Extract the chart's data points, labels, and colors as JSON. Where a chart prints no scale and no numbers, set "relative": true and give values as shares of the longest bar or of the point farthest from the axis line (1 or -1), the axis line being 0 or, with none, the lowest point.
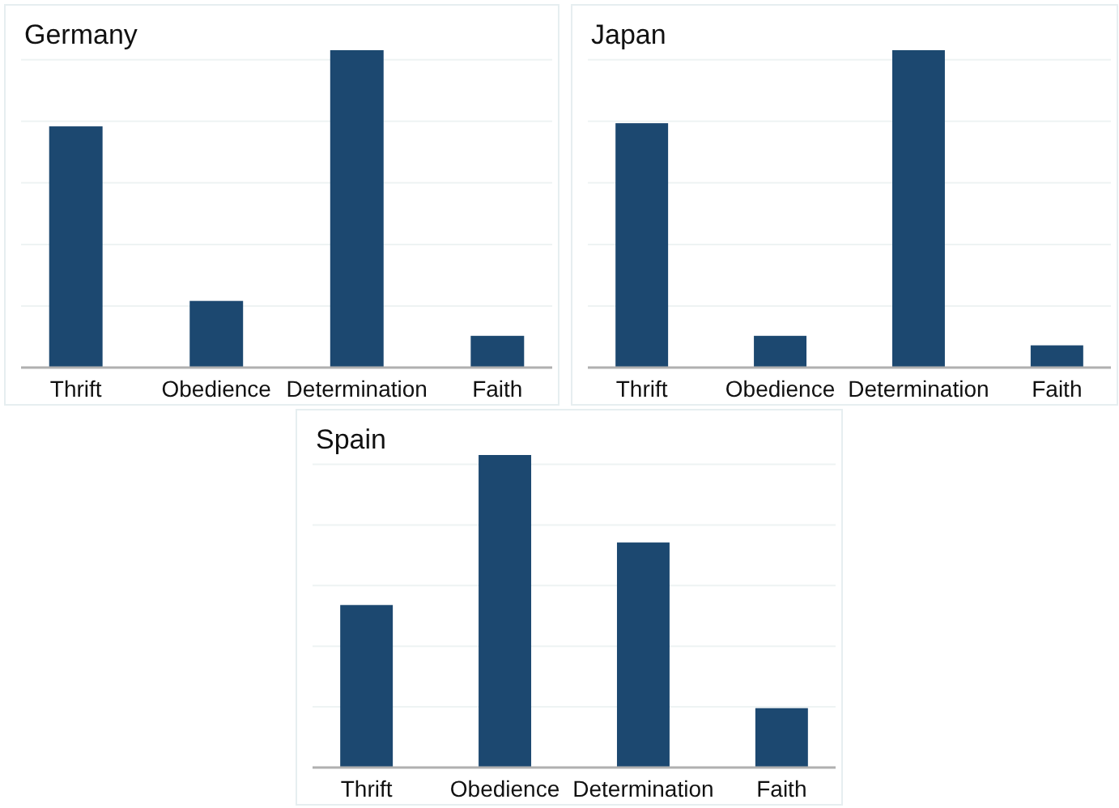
{
  "chart_data": [
    {
      "type": "bar",
      "title": "Germany",
      "categories": [
        "Thrift",
        "Obedience",
        "Determination",
        "Faith"
      ],
      "values": [
        0.76,
        0.21,
        1,
        0.1
      ],
      "color": "#1c4870",
      "relative": true,
      "grid": "y"
    },
    {
      "type": "bar",
      "title": "Japan",
      "categories": [
        "Thrift",
        "Obedience",
        "Determination",
        "Faith"
      ],
      "values": [
        0.77,
        0.1,
        1,
        0.07
      ],
      "color": "#1c4870",
      "relative": true,
      "grid": "y"
    },
    {
      "type": "bar",
      "title": "Spain",
      "categories": [
        "Thrift",
        "Obedience",
        "Determination",
        "Faith"
      ],
      "values": [
        0.52,
        1,
        0.72,
        0.19
      ],
      "color": "#1c4870",
      "relative": true,
      "grid": "y"
    }
  ]
}
